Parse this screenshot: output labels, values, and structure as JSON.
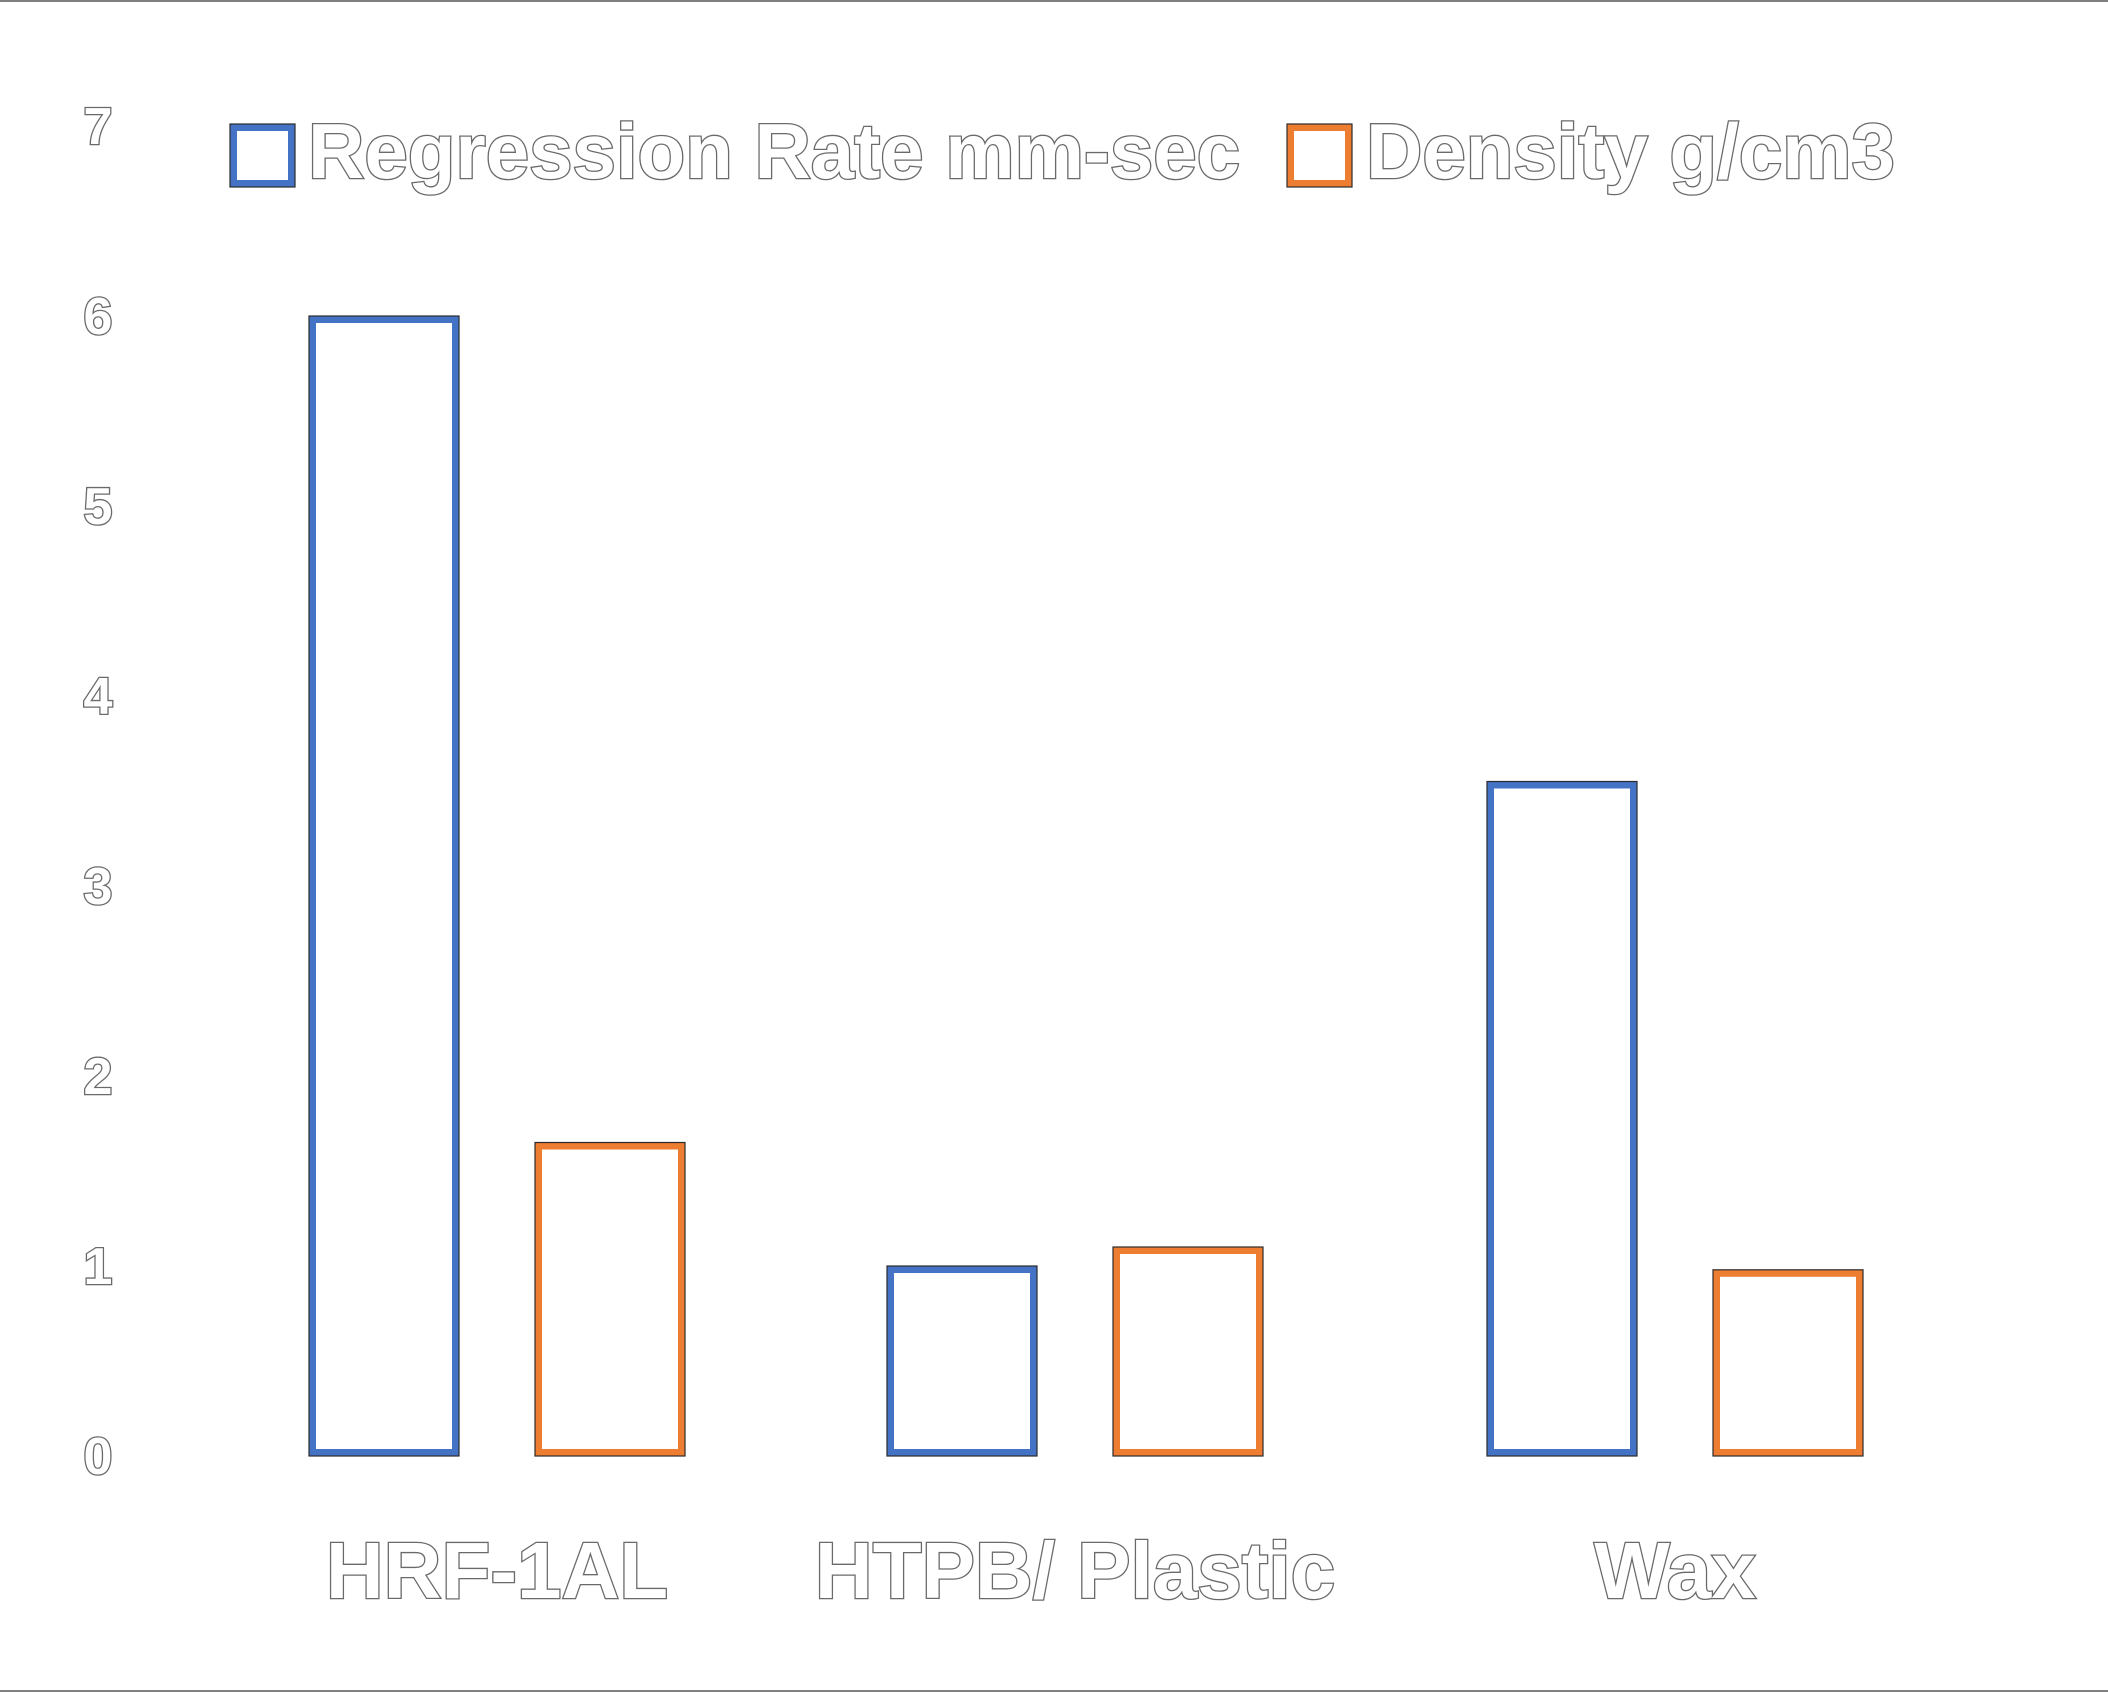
{
  "chart_data": {
    "type": "bar",
    "categories": [
      "HRF-1AL",
      "HTPB/ Plastic",
      "Wax"
    ],
    "series": [
      {
        "name": "Regression Rate mm-sec",
        "values": [
          6.0,
          1.0,
          3.55
        ],
        "color": "#4472C4"
      },
      {
        "name": "Density g/cm3",
        "values": [
          1.65,
          1.1,
          0.98
        ],
        "color": "#ED7D31"
      }
    ],
    "yticks": [
      "0",
      "1",
      "2",
      "3",
      "4",
      "5",
      "6",
      "7"
    ],
    "ylim": [
      0,
      7
    ],
    "grid": false,
    "legend_position": "top",
    "bar_style": "outline"
  }
}
